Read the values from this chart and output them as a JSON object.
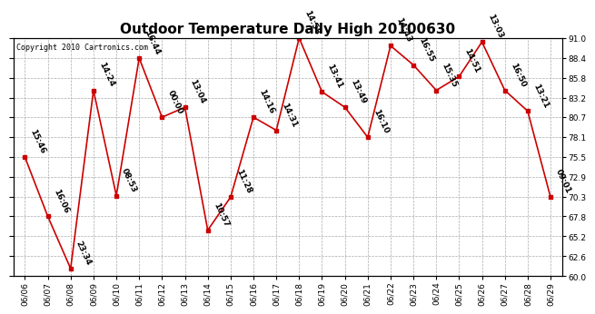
{
  "title": "Outdoor Temperature Daily High 20100630",
  "copyright": "Copyright 2010 Cartronics.com",
  "dates": [
    "06/06",
    "06/07",
    "06/08",
    "06/09",
    "06/10",
    "06/11",
    "06/12",
    "06/13",
    "06/14",
    "06/15",
    "06/16",
    "06/17",
    "06/18",
    "06/19",
    "06/20",
    "06/21",
    "06/22",
    "06/23",
    "06/24",
    "06/25",
    "06/26",
    "06/27",
    "06/28",
    "06/29"
  ],
  "times": [
    "15:46",
    "16:06",
    "23:34",
    "14:24",
    "08:53",
    "16:44",
    "00:00",
    "13:04",
    "10:57",
    "11:28",
    "14:16",
    "14:31",
    "14:58",
    "13:41",
    "13:49",
    "16:10",
    "14:43",
    "16:55",
    "15:35",
    "14:51",
    "13:03",
    "16:50",
    "13:21",
    "09:01"
  ],
  "values": [
    75.5,
    67.8,
    61.0,
    84.2,
    70.5,
    88.4,
    80.7,
    82.0,
    66.0,
    70.3,
    80.7,
    79.0,
    91.0,
    84.0,
    82.0,
    78.1,
    90.0,
    87.5,
    84.2,
    86.0,
    90.5,
    84.2,
    81.5,
    70.3
  ],
  "ylim": [
    60.0,
    91.0
  ],
  "yticks": [
    60.0,
    62.6,
    65.2,
    67.8,
    70.3,
    72.9,
    75.5,
    78.1,
    80.7,
    83.2,
    85.8,
    88.4,
    91.0
  ],
  "line_color": "#cc0000",
  "marker_color": "#cc0000",
  "bg_color": "#ffffff",
  "grid_color": "#aaaaaa",
  "title_fontsize": 11,
  "label_fontsize": 6.5,
  "tick_fontsize": 6.5,
  "copyright_fontsize": 6
}
